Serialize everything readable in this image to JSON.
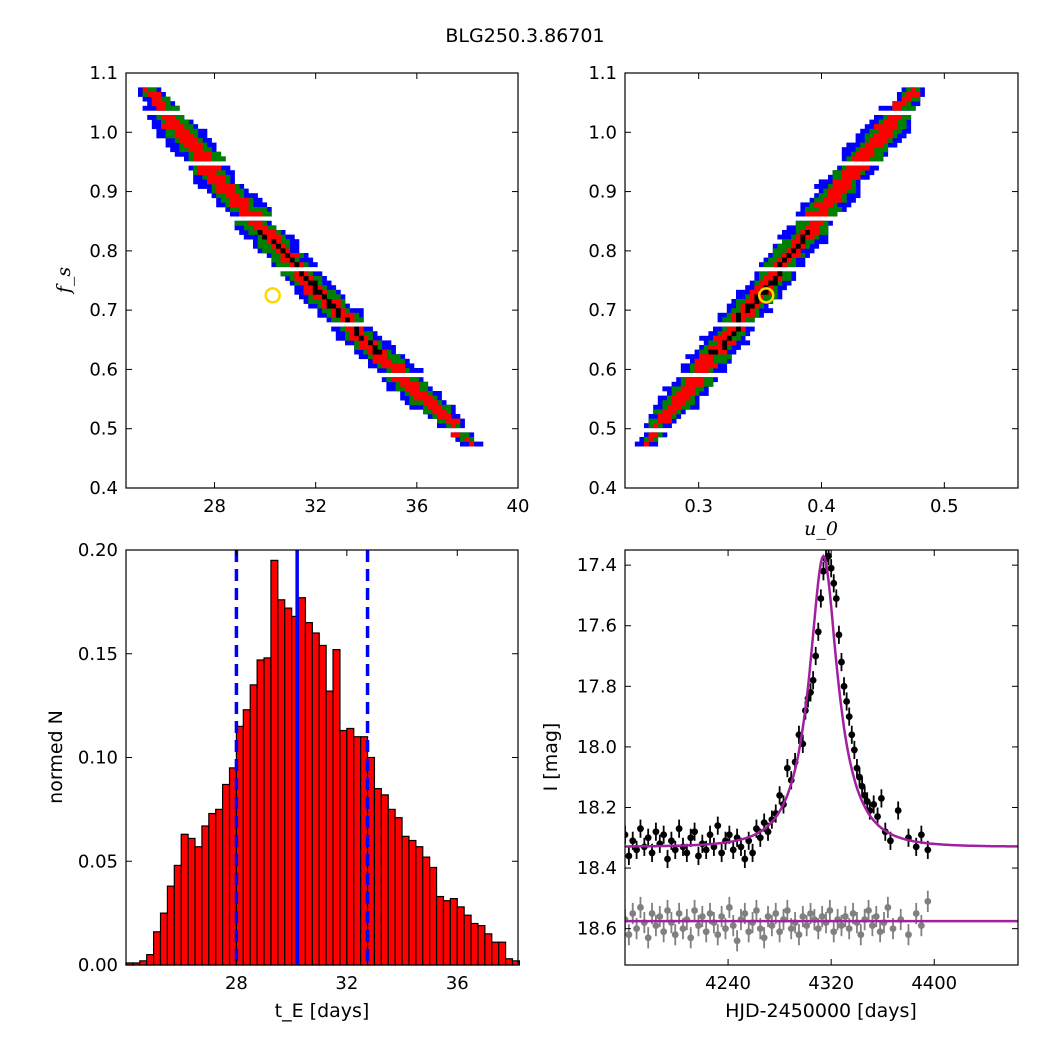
{
  "figure": {
    "title": "BLG250.3.86701"
  },
  "colors": {
    "contour_outer": "#0000ff",
    "contour_mid": "#008000",
    "contour_inner": "#ff0000",
    "contour_core": "#000000",
    "best_fit_marker": "#ffd700",
    "histogram_bar": "#ff0000",
    "median_line": "#0000ff",
    "model_curve": "#a020a0",
    "data_main": "#000000",
    "data_secondary": "#808080"
  },
  "chart_data": [
    {
      "id": "fs_vs_tE",
      "type": "heatmap",
      "title": "",
      "xlabel": "",
      "ylabel": "f_s",
      "xlim": [
        24.5,
        40
      ],
      "ylim": [
        0.4,
        1.1
      ],
      "xticks": [
        "28",
        "32",
        "36",
        "40"
      ],
      "yticks": [
        "0.4",
        "0.5",
        "0.6",
        "0.7",
        "0.8",
        "0.9",
        "1.0",
        "1.1"
      ],
      "relation": {
        "x_at_fs_1_08": 25.3,
        "x_at_fs_0_48": 38.1,
        "curvature": "concave"
      },
      "best_fit": {
        "tE": 30.3,
        "fs": 0.725
      },
      "levels": [
        "outer",
        "mid",
        "inner",
        "core"
      ]
    },
    {
      "id": "fs_vs_u0",
      "type": "heatmap",
      "title": "",
      "xlabel": "u_0",
      "ylabel": "",
      "xlim": [
        0.24,
        0.56
      ],
      "ylim": [
        0.4,
        1.1
      ],
      "xticks": [
        "0.3",
        "0.4",
        "0.5"
      ],
      "yticks": [
        "0.4",
        "0.5",
        "0.6",
        "0.7",
        "0.8",
        "0.9",
        "1.0",
        "1.1"
      ],
      "relation": {
        "u0_at_fs_0_48": 0.257,
        "u0_at_fs_1_08": 0.478
      },
      "best_fit": {
        "u0": 0.355,
        "fs": 0.725
      },
      "levels": [
        "outer",
        "mid",
        "inner",
        "core"
      ]
    },
    {
      "id": "tE_histogram",
      "type": "bar",
      "title": "",
      "xlabel": "t_E [days]",
      "ylabel": "normed N",
      "xlim": [
        24.0,
        38.2
      ],
      "ylim": [
        0.0,
        0.2
      ],
      "xticks": [
        "28",
        "32",
        "36"
      ],
      "yticks": [
        "0.00",
        "0.05",
        "0.10",
        "0.15",
        "0.20"
      ],
      "bin_start": 24.0,
      "bin_width": 0.25,
      "values": [
        0.001,
        0.001,
        0.002,
        0.005,
        0.016,
        0.025,
        0.038,
        0.048,
        0.063,
        0.061,
        0.057,
        0.067,
        0.073,
        0.075,
        0.087,
        0.095,
        0.115,
        0.123,
        0.135,
        0.147,
        0.148,
        0.195,
        0.176,
        0.172,
        0.168,
        0.177,
        0.165,
        0.16,
        0.154,
        0.132,
        0.152,
        0.113,
        0.114,
        0.11,
        0.11,
        0.1,
        0.085,
        0.082,
        0.075,
        0.071,
        0.062,
        0.06,
        0.057,
        0.052,
        0.047,
        0.033,
        0.031,
        0.032,
        0.028,
        0.024,
        0.02,
        0.019,
        0.015,
        0.011,
        0.011,
        0.003,
        0.002
      ],
      "median": 30.2,
      "bounds": [
        28.0,
        32.75
      ]
    },
    {
      "id": "light_curve",
      "type": "scatter",
      "title": "",
      "xlabel": "HJD-2450000 [days]",
      "ylabel": "I [mag]",
      "xlim": [
        4160,
        4465
      ],
      "ylim": [
        18.72,
        17.35
      ],
      "xticks": [
        "4240",
        "4320",
        "4400"
      ],
      "yticks": [
        "17.4",
        "17.6",
        "17.8",
        "18.0",
        "18.2",
        "18.4",
        "18.6"
      ],
      "model": {
        "t0": 4314,
        "peak_mag": 17.37,
        "baseline_main": 18.33,
        "baseline_secondary": 18.575,
        "tE": 30.2,
        "u0": 0.355
      },
      "series": [
        {
          "data_x": [
            4160,
            4163,
            4166,
            4169,
            4172,
            4175,
            4178,
            4181,
            4184,
            4187,
            4190,
            4193,
            4196,
            4199,
            4202,
            4205,
            4208,
            4211,
            4214,
            4217,
            4220,
            4223,
            4226,
            4229,
            4232,
            4235,
            4238,
            4241,
            4244,
            4247,
            4250,
            4253,
            4256,
            4259,
            4262,
            4265,
            4268,
            4271,
            4274,
            4277,
            4280,
            4283,
            4286,
            4289,
            4292,
            4295,
            4298,
            4300,
            4302,
            4304,
            4306,
            4308,
            4310,
            4312,
            4314,
            4316,
            4318,
            4320,
            4322,
            4324,
            4326,
            4328,
            4330,
            4332,
            4334,
            4336,
            4338,
            4340,
            4342,
            4344,
            4346,
            4348,
            4350,
            4353,
            4356,
            4359,
            4362,
            4366,
            4372,
            4380,
            4386,
            4390,
            4395
          ],
          "data_y": [
            18.29,
            18.36,
            18.31,
            18.34,
            18.27,
            18.33,
            18.3,
            18.35,
            18.28,
            18.32,
            18.29,
            18.37,
            18.31,
            18.34,
            18.27,
            18.33,
            18.35,
            18.3,
            18.28,
            18.36,
            18.32,
            18.34,
            18.29,
            18.33,
            18.26,
            18.35,
            18.31,
            18.29,
            18.34,
            18.3,
            18.33,
            18.37,
            18.31,
            18.35,
            18.27,
            18.3,
            18.25,
            18.28,
            18.24,
            18.22,
            18.16,
            18.19,
            18.07,
            18.11,
            18.05,
            17.96,
            17.99,
            17.88,
            17.84,
            17.82,
            17.78,
            17.7,
            17.62,
            17.51,
            17.42,
            17.38,
            17.37,
            17.41,
            17.46,
            17.51,
            17.63,
            17.72,
            17.8,
            17.85,
            17.9,
            17.96,
            18.01,
            18.07,
            18.1,
            18.13,
            18.16,
            18.18,
            18.21,
            18.19,
            18.23,
            18.17,
            18.28,
            18.31,
            18.21,
            18.3,
            18.33,
            18.29,
            18.34
          ],
          "data_err": [
            0.03,
            0.03,
            0.03,
            0.03,
            0.03,
            0.03,
            0.03,
            0.03,
            0.03,
            0.03,
            0.03,
            0.03,
            0.03,
            0.03,
            0.03,
            0.03,
            0.03,
            0.03,
            0.03,
            0.03,
            0.03,
            0.03,
            0.03,
            0.03,
            0.03,
            0.03,
            0.03,
            0.03,
            0.03,
            0.03,
            0.03,
            0.03,
            0.03,
            0.03,
            0.03,
            0.03,
            0.03,
            0.03,
            0.03,
            0.03,
            0.03,
            0.03,
            0.03,
            0.03,
            0.03,
            0.03,
            0.03,
            0.03,
            0.03,
            0.03,
            0.03,
            0.03,
            0.03,
            0.03,
            0.03,
            0.03,
            0.03,
            0.03,
            0.03,
            0.03,
            0.03,
            0.03,
            0.03,
            0.03,
            0.03,
            0.03,
            0.03,
            0.03,
            0.03,
            0.03,
            0.03,
            0.03,
            0.03,
            0.03,
            0.03,
            0.03,
            0.03,
            0.03,
            0.03,
            0.03,
            0.03,
            0.03,
            0.03
          ]
        },
        {
          "data_x": [
            4160,
            4163,
            4166,
            4169,
            4172,
            4175,
            4178,
            4181,
            4184,
            4187,
            4190,
            4193,
            4196,
            4199,
            4202,
            4205,
            4208,
            4211,
            4214,
            4217,
            4220,
            4223,
            4226,
            4229,
            4232,
            4235,
            4238,
            4241,
            4244,
            4247,
            4250,
            4253,
            4256,
            4259,
            4262,
            4265,
            4268,
            4271,
            4274,
            4277,
            4280,
            4283,
            4286,
            4289,
            4292,
            4295,
            4298,
            4301,
            4304,
            4307,
            4310,
            4313,
            4316,
            4319,
            4322,
            4325,
            4328,
            4331,
            4334,
            4337,
            4340,
            4343,
            4346,
            4349,
            4352,
            4355,
            4358,
            4361,
            4364,
            4368,
            4374,
            4380,
            4386,
            4390,
            4395
          ],
          "data_y": [
            18.57,
            18.62,
            18.55,
            18.6,
            18.53,
            18.58,
            18.63,
            18.55,
            18.59,
            18.56,
            18.61,
            18.54,
            18.58,
            18.62,
            18.55,
            18.6,
            18.57,
            18.63,
            18.54,
            18.59,
            18.56,
            18.61,
            18.55,
            18.58,
            18.62,
            18.56,
            18.6,
            18.53,
            18.59,
            18.64,
            18.57,
            18.55,
            18.61,
            18.58,
            18.54,
            18.6,
            18.63,
            18.56,
            18.59,
            18.55,
            18.61,
            18.57,
            18.54,
            18.6,
            18.58,
            18.62,
            18.56,
            18.59,
            18.55,
            18.57,
            18.6,
            18.56,
            18.58,
            18.54,
            18.61,
            18.57,
            18.59,
            18.56,
            18.6,
            18.55,
            18.58,
            18.62,
            18.57,
            18.54,
            18.59,
            18.56,
            18.61,
            18.58,
            18.53,
            18.6,
            18.57,
            18.62,
            18.55,
            18.59,
            18.51
          ],
          "data_err": [
            0.035,
            0.035,
            0.035,
            0.035,
            0.035,
            0.035,
            0.035,
            0.035,
            0.035,
            0.035,
            0.035,
            0.035,
            0.035,
            0.035,
            0.035,
            0.035,
            0.035,
            0.035,
            0.035,
            0.035,
            0.035,
            0.035,
            0.035,
            0.035,
            0.035,
            0.035,
            0.035,
            0.035,
            0.035,
            0.035,
            0.035,
            0.035,
            0.035,
            0.035,
            0.035,
            0.035,
            0.035,
            0.035,
            0.035,
            0.035,
            0.035,
            0.035,
            0.035,
            0.035,
            0.035,
            0.035,
            0.035,
            0.035,
            0.035,
            0.035,
            0.035,
            0.035,
            0.035,
            0.035,
            0.035,
            0.035,
            0.035,
            0.035,
            0.035,
            0.035,
            0.035,
            0.035,
            0.035,
            0.035,
            0.035,
            0.035,
            0.035,
            0.035,
            0.035,
            0.035,
            0.035,
            0.035,
            0.035,
            0.035,
            0.035
          ]
        }
      ]
    }
  ]
}
